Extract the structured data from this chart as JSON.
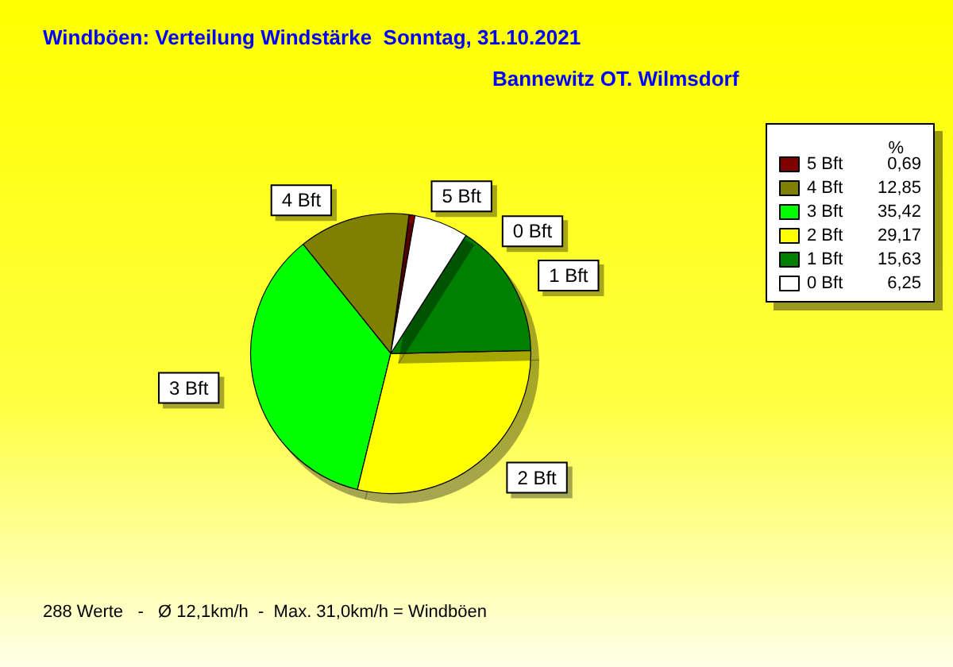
{
  "chart_data": {
    "type": "pie",
    "title": "Windböen: Verteilung Windstärke  Sonntag, 31.10.2021",
    "subtitle": "Bannewitz OT. Wilmsdorf",
    "categories": [
      "5 Bft",
      "4 Bft",
      "3 Bft",
      "2 Bft",
      "1 Bft",
      "0 Bft"
    ],
    "values": [
      0.69,
      12.85,
      35.42,
      29.17,
      15.63,
      6.25
    ],
    "colors": [
      "#800000",
      "#808000",
      "#00ff00",
      "#ffff00",
      "#008000",
      "#ffffff"
    ],
    "value_labels": [
      "0,69",
      "12,85",
      "35,42",
      "29,17",
      "15,63",
      "6,25"
    ],
    "legend_title": "%",
    "legend": "top right",
    "annotations": [
      "288 Werte   -   Ø 12,1km/h  -  Max. 31,0km/h = Windböen"
    ]
  }
}
